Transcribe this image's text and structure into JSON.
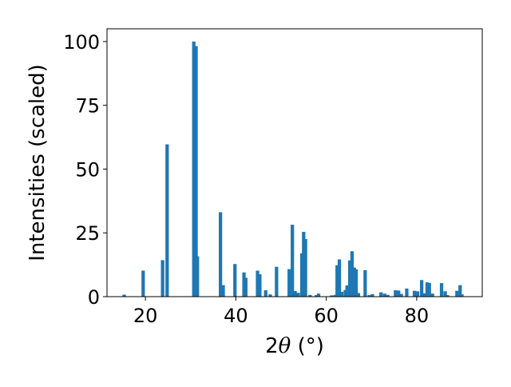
{
  "chart_data": {
    "type": "bar",
    "xlabel_prefix": "2",
    "xlabel_theta": "θ",
    "xlabel_suffix": " (°)",
    "ylabel": "Intensities (scaled)",
    "xlim": [
      11.5,
      94.5
    ],
    "ylim": [
      0,
      105
    ],
    "xticks": [
      20,
      40,
      60,
      80
    ],
    "yticks": [
      0,
      25,
      50,
      75,
      100
    ],
    "grid": false,
    "bar_width": 0.75,
    "bar_color": "#1f77b4",
    "x": [
      15.3,
      19.5,
      23.8,
      24.8,
      30.7,
      31.2,
      31.5,
      36.6,
      37.2,
      39.8,
      41.8,
      42.2,
      44.8,
      45.3,
      46.6,
      47.6,
      49.0,
      51.8,
      52.5,
      53.1,
      53.8,
      54.6,
      55.0,
      55.4,
      56.4,
      57.8,
      58.3,
      61.2,
      62.0,
      62.4,
      62.9,
      63.4,
      64.2,
      64.6,
      65.2,
      65.7,
      66.2,
      66.6,
      67.1,
      68.6,
      69.5,
      70.2,
      72.1,
      72.9,
      73.6,
      75.3,
      76.0,
      76.6,
      77.8,
      79.5,
      80.2,
      81.1,
      81.6,
      82.3,
      82.8,
      83.5,
      85.5,
      86.3,
      86.8,
      88.9,
      89.6,
      90.0
    ],
    "values": [
      0.8,
      10.2,
      14.3,
      59.7,
      100.0,
      98.2,
      15.8,
      33.1,
      4.5,
      12.8,
      9.5,
      7.4,
      10.2,
      8.8,
      2.5,
      0.9,
      11.7,
      10.8,
      28.2,
      2.2,
      1.5,
      17.0,
      25.4,
      22.6,
      0.7,
      0.6,
      1.2,
      0.5,
      0.7,
      12.3,
      14.6,
      1.9,
      2.6,
      4.4,
      14.2,
      17.8,
      11.4,
      10.7,
      1.4,
      10.4,
      0.6,
      1.0,
      1.7,
      1.2,
      0.7,
      2.5,
      2.4,
      1.1,
      3.2,
      2.3,
      2.1,
      6.5,
      1.3,
      5.6,
      5.4,
      1.2,
      5.3,
      2.1,
      0.6,
      2.3,
      4.5,
      0.9
    ]
  }
}
